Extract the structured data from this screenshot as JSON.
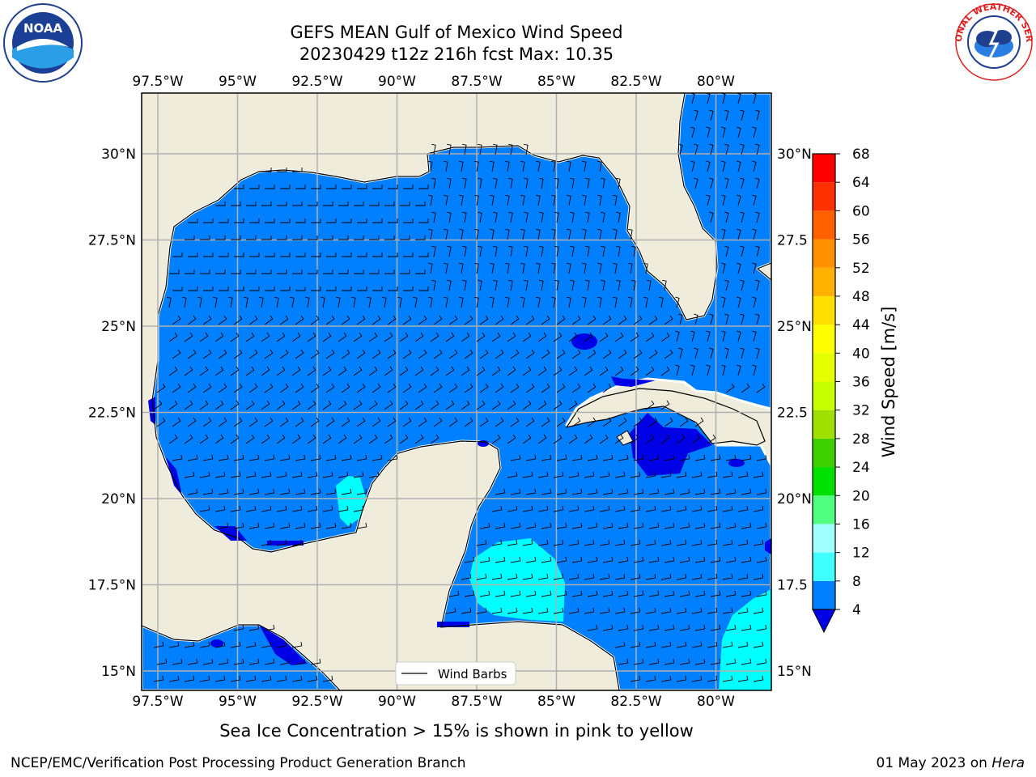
{
  "title": {
    "line1": "GEFS MEAN Gulf of Mexico Wind Speed",
    "line2": "20230429 t12z 216h fcst   Max: 10.35"
  },
  "logos": {
    "left": {
      "icon": "noaa-logo",
      "text": "NOAA"
    },
    "right": {
      "icon": "nws-logo",
      "ring_text": "NATIONAL WEATHER SERVICE"
    }
  },
  "map": {
    "lon_labels": [
      "97.5°W",
      "95°W",
      "92.5°W",
      "90°W",
      "87.5°W",
      "85°W",
      "82.5°W",
      "80°W"
    ],
    "lat_labels_left": [
      "30°N",
      "27.5°N",
      "25°N",
      "22.5°N",
      "20°N",
      "17.5°N",
      "15°N"
    ],
    "lat_labels_right": [
      "30°N",
      "27.5",
      "25°N",
      "22.5",
      "20°N",
      "17.5",
      "15°N"
    ],
    "legend_label": "Wind Barbs",
    "colors": {
      "land": "#efecdc",
      "ocean_4_8": "#0080ff",
      "ocean_0_4": "#0000e6",
      "ocean_8_12": "#00ffff",
      "grid": "#b0b0b0"
    }
  },
  "colorbar": {
    "label": "Wind Speed [m/s]",
    "ticks": [
      "4",
      "8",
      "12",
      "16",
      "20",
      "24",
      "28",
      "32",
      "36",
      "40",
      "44",
      "48",
      "52",
      "56",
      "60",
      "64",
      "68"
    ],
    "colors": [
      "#0080ff",
      "#00ffff",
      "#40ffff",
      "#a0ffff",
      "#50ff80",
      "#00e000",
      "#40d000",
      "#a0e000",
      "#c8ff00",
      "#e6ff00",
      "#ffff00",
      "#ffdf00",
      "#ffb000",
      "#ff9000",
      "#ff6000",
      "#ff3000",
      "#ff0000"
    ],
    "under_color": "#0000e6"
  },
  "caption": "Sea Ice Concentration > 15% is shown in pink to yellow",
  "footer": {
    "left": "NCEP/EMC/Verification Post Processing Product Generation Branch",
    "right_date": "01 May 2023 on ",
    "right_host": "Hera"
  }
}
